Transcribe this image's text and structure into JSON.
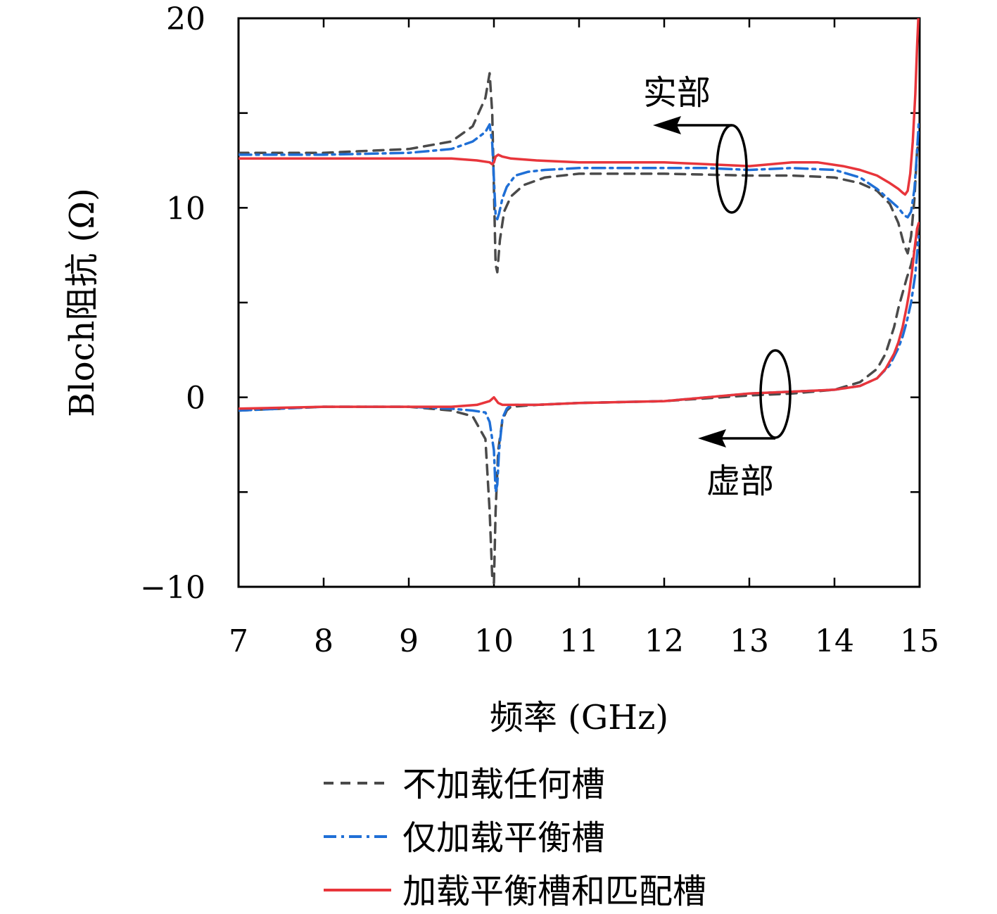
{
  "chart_data": {
    "type": "line",
    "xlabel": "频率 (GHz)",
    "ylabel": "Bloch阻抗 (Ω)",
    "xlim": [
      7,
      15
    ],
    "ylim": [
      -10,
      20
    ],
    "x_ticks": [
      7,
      8,
      9,
      10,
      11,
      12,
      13,
      14,
      15
    ],
    "y_ticks": [
      -10,
      0,
      10,
      20
    ],
    "y_tick_labels": [
      "−10",
      "0",
      "10",
      "20"
    ],
    "grid": false,
    "legend_position": "bottom",
    "annotations": [
      {
        "text": "实部"
      },
      {
        "text": "虚部"
      }
    ],
    "series": [
      {
        "name": "不加载任何槽",
        "color": "#4a4a4a",
        "dash": "dashed",
        "real": {
          "x": [
            7,
            8,
            9,
            9.5,
            9.75,
            9.9,
            9.95,
            9.98,
            10.0,
            10.02,
            10.04,
            10.07,
            10.12,
            10.2,
            10.35,
            10.6,
            11,
            11.5,
            12,
            13,
            13.5,
            14,
            14.3,
            14.5,
            14.65,
            14.75,
            14.82,
            14.86,
            14.9,
            14.94,
            14.97,
            14.99
          ],
          "y": [
            12.9,
            12.9,
            13.1,
            13.5,
            14.3,
            15.8,
            17.1,
            15.0,
            11.0,
            7.0,
            6.6,
            8.3,
            9.8,
            10.6,
            11.2,
            11.6,
            11.8,
            11.8,
            11.8,
            11.7,
            11.7,
            11.6,
            11.3,
            10.9,
            10.2,
            9.2,
            8.0,
            7.6,
            8.5,
            10.5,
            13.0,
            13.5
          ]
        },
        "imag": {
          "x": [
            7,
            8,
            9,
            9.5,
            9.75,
            9.9,
            9.95,
            9.98,
            10.0,
            10.02,
            10.05,
            10.1,
            10.15,
            10.2,
            10.5,
            11,
            12,
            13,
            13.5,
            14,
            14.3,
            14.5,
            14.6,
            14.7,
            14.75,
            14.8,
            14.85,
            14.9,
            14.95,
            14.99
          ],
          "y": [
            -0.7,
            -0.5,
            -0.5,
            -0.7,
            -1.0,
            -2.2,
            -6.0,
            -9.5,
            -9.8,
            -6.0,
            -2.8,
            -1.2,
            -0.7,
            -0.5,
            -0.4,
            -0.3,
            -0.2,
            0.1,
            0.2,
            0.4,
            0.8,
            1.5,
            2.3,
            3.7,
            4.7,
            5.5,
            6.3,
            7.0,
            8.0,
            9.0
          ]
        }
      },
      {
        "name": "仅加载平衡槽",
        "color": "#1f6fd6",
        "dash": "dashdot",
        "real": {
          "x": [
            7,
            8,
            9,
            9.5,
            9.75,
            9.9,
            9.95,
            9.98,
            10.0,
            10.02,
            10.04,
            10.06,
            10.1,
            10.15,
            10.25,
            10.4,
            10.6,
            11,
            11.5,
            12,
            12.5,
            13,
            13.5,
            14,
            14.3,
            14.5,
            14.65,
            14.75,
            14.82,
            14.86,
            14.9,
            14.94,
            14.97,
            14.99
          ],
          "y": [
            12.8,
            12.8,
            12.9,
            13.1,
            13.5,
            14.0,
            14.4,
            13.4,
            11.5,
            9.6,
            9.4,
            9.7,
            10.5,
            11.1,
            11.7,
            11.9,
            12.0,
            12.1,
            12.1,
            12.1,
            12.1,
            12.0,
            12.1,
            12.0,
            11.6,
            11.0,
            10.4,
            10.0,
            9.6,
            9.5,
            9.8,
            11.0,
            13.0,
            14.5
          ]
        },
        "imag": {
          "x": [
            7,
            8,
            9,
            9.5,
            9.75,
            9.9,
            9.95,
            10.0,
            10.02,
            10.04,
            10.06,
            10.1,
            10.15,
            10.2,
            10.5,
            11,
            12,
            13,
            13.5,
            14,
            14.3,
            14.5,
            14.65,
            14.75,
            14.8,
            14.85,
            14.9,
            14.95,
            14.99
          ],
          "y": [
            -0.7,
            -0.5,
            -0.5,
            -0.6,
            -0.7,
            -0.8,
            -1.3,
            -2.8,
            -5.0,
            -4.6,
            -2.8,
            -1.1,
            -0.6,
            -0.4,
            -0.4,
            -0.3,
            -0.2,
            0.2,
            0.3,
            0.4,
            0.6,
            1.0,
            1.7,
            2.6,
            3.2,
            4.0,
            5.0,
            6.5,
            8.5
          ]
        }
      },
      {
        "name": "加载平衡槽和匹配槽",
        "color": "#e8353b",
        "dash": "solid",
        "real": {
          "x": [
            7,
            8,
            9,
            9.5,
            9.8,
            9.95,
            9.98,
            10.0,
            10.02,
            10.05,
            10.1,
            10.2,
            10.5,
            11,
            11.5,
            12,
            12.5,
            13,
            13.5,
            13.8,
            14.1,
            14.3,
            14.5,
            14.65,
            14.75,
            14.8,
            14.83,
            14.86,
            14.89,
            14.92,
            14.95,
            14.97,
            14.985,
            14.995
          ],
          "y": [
            12.6,
            12.6,
            12.6,
            12.6,
            12.5,
            12.4,
            12.3,
            12.4,
            12.7,
            12.8,
            12.7,
            12.6,
            12.5,
            12.4,
            12.4,
            12.4,
            12.3,
            12.2,
            12.4,
            12.4,
            12.2,
            12.0,
            11.7,
            11.3,
            11.0,
            10.8,
            10.7,
            10.9,
            11.8,
            13.5,
            16.0,
            18.5,
            20.0,
            20.0
          ]
        },
        "imag": {
          "x": [
            7,
            8,
            9,
            9.5,
            9.8,
            9.95,
            10.0,
            10.05,
            10.1,
            10.2,
            10.5,
            11,
            12,
            13,
            13.5,
            14,
            14.3,
            14.5,
            14.6,
            14.7,
            14.75,
            14.8,
            14.85,
            14.88,
            14.91,
            14.94,
            14.97,
            14.99
          ],
          "y": [
            -0.6,
            -0.5,
            -0.5,
            -0.5,
            -0.4,
            -0.2,
            0.0,
            -0.3,
            -0.4,
            -0.4,
            -0.4,
            -0.3,
            -0.2,
            0.2,
            0.3,
            0.4,
            0.6,
            1.0,
            1.5,
            2.3,
            2.9,
            3.7,
            4.8,
            5.6,
            6.6,
            7.8,
            8.9,
            9.2
          ]
        }
      }
    ]
  }
}
